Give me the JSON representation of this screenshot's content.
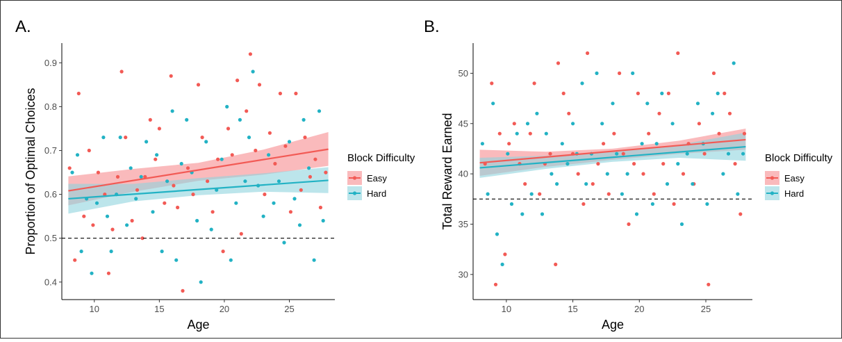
{
  "colors": {
    "easy": "#F25A55",
    "hard": "#22B2C4",
    "easy_band": "#F8A3A6",
    "hard_band": "#8FD4DE",
    "axis": "#000000",
    "tick_text": "#4D4D4D"
  },
  "chart_data": [
    {
      "type": "scatter",
      "panel_label": "A.",
      "xlabel": "Age",
      "ylabel": "Proportion of Optimal Choices",
      "xlim": [
        7.5,
        28.5
      ],
      "ylim": [
        0.36,
        0.945
      ],
      "x_ticks": [
        10,
        15,
        20,
        25
      ],
      "y_ticks": [
        0.4,
        0.5,
        0.6,
        0.7,
        0.8,
        0.9
      ],
      "x_tick_labels": [
        "10",
        "15",
        "20",
        "25"
      ],
      "y_tick_labels": [
        "0.4",
        "0.5",
        "0.6",
        "0.7",
        "0.8",
        "0.9"
      ],
      "reference_line": {
        "y": 0.5,
        "style": "dashed"
      },
      "grid": false,
      "legend": {
        "title": "Block Difficulty",
        "placement": "right",
        "entries": [
          "Easy",
          "Hard"
        ]
      },
      "series": [
        {
          "name": "Easy",
          "color": "#F25A55",
          "fit": {
            "x": [
              8,
              28
            ],
            "y": [
              0.608,
              0.703
            ]
          },
          "band": {
            "x": [
              8,
              13,
              18,
              23,
              28
            ],
            "lower": [
              0.575,
              0.606,
              0.631,
              0.645,
              0.665
            ],
            "upper": [
              0.641,
              0.658,
              0.672,
              0.702,
              0.742
            ]
          },
          "points": [
            [
              8.1,
              0.66
            ],
            [
              8.5,
              0.45
            ],
            [
              8.8,
              0.83
            ],
            [
              9.2,
              0.55
            ],
            [
              9.6,
              0.7
            ],
            [
              9.9,
              0.53
            ],
            [
              10.3,
              0.65
            ],
            [
              10.8,
              0.6
            ],
            [
              11.1,
              0.42
            ],
            [
              11.4,
              0.52
            ],
            [
              11.8,
              0.64
            ],
            [
              12.1,
              0.88
            ],
            [
              12.4,
              0.73
            ],
            [
              12.9,
              0.54
            ],
            [
              13.3,
              0.61
            ],
            [
              13.7,
              0.5
            ],
            [
              13.9,
              0.64
            ],
            [
              14.3,
              0.77
            ],
            [
              14.7,
              0.68
            ],
            [
              15.0,
              0.75
            ],
            [
              15.4,
              0.58
            ],
            [
              15.9,
              0.87
            ],
            [
              16.1,
              0.62
            ],
            [
              16.4,
              0.57
            ],
            [
              16.8,
              0.38
            ],
            [
              17.2,
              0.66
            ],
            [
              17.6,
              0.6
            ],
            [
              18.0,
              0.85
            ],
            [
              18.3,
              0.73
            ],
            [
              18.7,
              0.63
            ],
            [
              19.1,
              0.56
            ],
            [
              19.5,
              0.68
            ],
            [
              19.9,
              0.47
            ],
            [
              20.3,
              0.75
            ],
            [
              20.6,
              0.69
            ],
            [
              21.0,
              0.86
            ],
            [
              21.3,
              0.51
            ],
            [
              21.7,
              0.79
            ],
            [
              22.0,
              0.92
            ],
            [
              22.4,
              0.7
            ],
            [
              22.7,
              0.85
            ],
            [
              23.1,
              0.6
            ],
            [
              23.5,
              0.74
            ],
            [
              23.9,
              0.67
            ],
            [
              24.3,
              0.83
            ],
            [
              24.7,
              0.71
            ],
            [
              25.1,
              0.56
            ],
            [
              25.5,
              0.83
            ],
            [
              25.9,
              0.61
            ],
            [
              26.2,
              0.73
            ],
            [
              26.6,
              0.64
            ],
            [
              27.0,
              0.68
            ],
            [
              27.4,
              0.57
            ],
            [
              27.8,
              0.65
            ]
          ]
        },
        {
          "name": "Hard",
          "color": "#22B2C4",
          "fit": {
            "x": [
              8,
              28
            ],
            "y": [
              0.59,
              0.632
            ]
          },
          "band": {
            "x": [
              8,
              13,
              18,
              23,
              28
            ],
            "lower": [
              0.556,
              0.584,
              0.598,
              0.606,
              0.603
            ],
            "upper": [
              0.624,
              0.624,
              0.637,
              0.648,
              0.662
            ]
          },
          "points": [
            [
              8.3,
              0.65
            ],
            [
              8.7,
              0.69
            ],
            [
              9.0,
              0.47
            ],
            [
              9.4,
              0.59
            ],
            [
              9.8,
              0.42
            ],
            [
              10.2,
              0.58
            ],
            [
              10.7,
              0.73
            ],
            [
              11.0,
              0.55
            ],
            [
              11.3,
              0.47
            ],
            [
              11.7,
              0.6
            ],
            [
              12.0,
              0.73
            ],
            [
              12.5,
              0.53
            ],
            [
              12.8,
              0.66
            ],
            [
              13.2,
              0.59
            ],
            [
              13.6,
              0.64
            ],
            [
              14.0,
              0.72
            ],
            [
              14.5,
              0.56
            ],
            [
              14.8,
              0.69
            ],
            [
              15.2,
              0.47
            ],
            [
              15.6,
              0.63
            ],
            [
              16.0,
              0.79
            ],
            [
              16.3,
              0.45
            ],
            [
              16.7,
              0.67
            ],
            [
              17.1,
              0.77
            ],
            [
              17.5,
              0.65
            ],
            [
              17.9,
              0.54
            ],
            [
              18.2,
              0.4
            ],
            [
              18.6,
              0.72
            ],
            [
              19.0,
              0.52
            ],
            [
              19.4,
              0.61
            ],
            [
              19.8,
              0.68
            ],
            [
              20.2,
              0.8
            ],
            [
              20.5,
              0.45
            ],
            [
              20.9,
              0.58
            ],
            [
              21.2,
              0.77
            ],
            [
              21.6,
              0.63
            ],
            [
              21.9,
              0.73
            ],
            [
              22.2,
              0.88
            ],
            [
              22.6,
              0.62
            ],
            [
              23.0,
              0.55
            ],
            [
              23.4,
              0.69
            ],
            [
              23.8,
              0.58
            ],
            [
              24.2,
              0.63
            ],
            [
              24.6,
              0.49
            ],
            [
              25.0,
              0.72
            ],
            [
              25.4,
              0.59
            ],
            [
              25.8,
              0.53
            ],
            [
              26.1,
              0.77
            ],
            [
              26.5,
              0.66
            ],
            [
              26.9,
              0.45
            ],
            [
              27.3,
              0.79
            ],
            [
              27.6,
              0.54
            ]
          ]
        }
      ]
    },
    {
      "type": "scatter",
      "panel_label": "B.",
      "xlabel": "Age",
      "ylabel": "Total Reward Earned",
      "xlim": [
        7.5,
        28.5
      ],
      "ylim": [
        27.5,
        53.0
      ],
      "x_ticks": [
        10,
        15,
        20,
        25
      ],
      "y_ticks": [
        30,
        35,
        40,
        45,
        50
      ],
      "x_tick_labels": [
        "10",
        "15",
        "20",
        "25"
      ],
      "y_tick_labels": [
        "30",
        "35",
        "40",
        "45",
        "50"
      ],
      "reference_line": {
        "y": 37.5,
        "style": "dashed"
      },
      "grid": false,
      "legend": {
        "title": "Block Difficulty",
        "placement": "right",
        "entries": [
          "Easy",
          "Hard"
        ]
      },
      "series": [
        {
          "name": "Easy",
          "color": "#F25A55",
          "fit": {
            "x": [
              8,
              28
            ],
            "y": [
              41.1,
              43.4
            ]
          },
          "band": {
            "x": [
              8,
              13,
              18,
              23,
              28
            ],
            "lower": [
              39.8,
              40.7,
              41.4,
              42.0,
              42.4
            ],
            "upper": [
              42.4,
              42.2,
              42.5,
              43.3,
              44.5
            ]
          },
          "points": [
            [
              8.4,
              41
            ],
            [
              8.9,
              49
            ],
            [
              9.2,
              29
            ],
            [
              9.5,
              44
            ],
            [
              9.9,
              32
            ],
            [
              10.2,
              43
            ],
            [
              10.6,
              45
            ],
            [
              11.0,
              41
            ],
            [
              11.4,
              39
            ],
            [
              11.8,
              44
            ],
            [
              12.1,
              49
            ],
            [
              12.5,
              38
            ],
            [
              12.9,
              41
            ],
            [
              13.3,
              42
            ],
            [
              13.7,
              31
            ],
            [
              13.9,
              51
            ],
            [
              14.3,
              48
            ],
            [
              14.7,
              46
            ],
            [
              15.0,
              42
            ],
            [
              15.4,
              40
            ],
            [
              15.8,
              37
            ],
            [
              16.1,
              52
            ],
            [
              16.5,
              39
            ],
            [
              16.9,
              41
            ],
            [
              17.3,
              43
            ],
            [
              17.7,
              38
            ],
            [
              18.1,
              44
            ],
            [
              18.5,
              50
            ],
            [
              18.8,
              42
            ],
            [
              19.2,
              35
            ],
            [
              19.6,
              41
            ],
            [
              19.9,
              48
            ],
            [
              20.3,
              40
            ],
            [
              20.7,
              44
            ],
            [
              21.1,
              38
            ],
            [
              21.5,
              46
            ],
            [
              21.8,
              41
            ],
            [
              22.2,
              48
            ],
            [
              22.6,
              37
            ],
            [
              22.9,
              52
            ],
            [
              23.3,
              40
            ],
            [
              23.7,
              43
            ],
            [
              24.1,
              39
            ],
            [
              24.5,
              45
            ],
            [
              24.9,
              42
            ],
            [
              25.2,
              29
            ],
            [
              25.6,
              50
            ],
            [
              26.0,
              44
            ],
            [
              26.4,
              48
            ],
            [
              26.8,
              46
            ],
            [
              27.2,
              41
            ],
            [
              27.6,
              36
            ],
            [
              27.9,
              44
            ]
          ]
        },
        {
          "name": "Hard",
          "color": "#22B2C4",
          "fit": {
            "x": [
              8,
              28
            ],
            "y": [
              40.6,
              42.7
            ]
          },
          "band": {
            "x": [
              8,
              13,
              18,
              23,
              28
            ],
            "lower": [
              39.6,
              40.5,
              41.2,
              41.6,
              41.3
            ],
            "upper": [
              41.6,
              41.8,
              42.2,
              42.9,
              44.1
            ]
          },
          "points": [
            [
              8.2,
              43
            ],
            [
              8.6,
              38
            ],
            [
              9.0,
              47
            ],
            [
              9.3,
              34
            ],
            [
              9.7,
              31
            ],
            [
              10.1,
              42
            ],
            [
              10.4,
              37
            ],
            [
              10.8,
              44
            ],
            [
              11.2,
              36
            ],
            [
              11.6,
              45
            ],
            [
              11.9,
              38
            ],
            [
              12.3,
              46
            ],
            [
              12.7,
              36
            ],
            [
              13.0,
              44
            ],
            [
              13.4,
              40
            ],
            [
              13.8,
              39
            ],
            [
              14.2,
              43
            ],
            [
              14.6,
              41
            ],
            [
              15.0,
              45
            ],
            [
              15.3,
              42
            ],
            [
              15.7,
              49
            ],
            [
              16.0,
              39
            ],
            [
              16.4,
              42
            ],
            [
              16.8,
              50
            ],
            [
              17.2,
              45
            ],
            [
              17.6,
              40
            ],
            [
              18.0,
              47
            ],
            [
              18.3,
              42
            ],
            [
              18.7,
              38
            ],
            [
              19.1,
              40
            ],
            [
              19.5,
              50
            ],
            [
              19.8,
              36
            ],
            [
              20.2,
              43
            ],
            [
              20.6,
              47
            ],
            [
              21.0,
              37
            ],
            [
              21.3,
              43
            ],
            [
              21.7,
              48
            ],
            [
              22.1,
              39
            ],
            [
              22.5,
              45
            ],
            [
              22.9,
              41
            ],
            [
              23.2,
              35
            ],
            [
              23.6,
              42
            ],
            [
              24.0,
              39
            ],
            [
              24.4,
              47
            ],
            [
              24.8,
              43
            ],
            [
              25.1,
              37
            ],
            [
              25.5,
              46
            ],
            [
              25.9,
              48
            ],
            [
              26.3,
              40
            ],
            [
              26.7,
              42
            ],
            [
              27.1,
              51
            ],
            [
              27.4,
              38
            ],
            [
              27.8,
              42
            ]
          ]
        }
      ]
    }
  ]
}
